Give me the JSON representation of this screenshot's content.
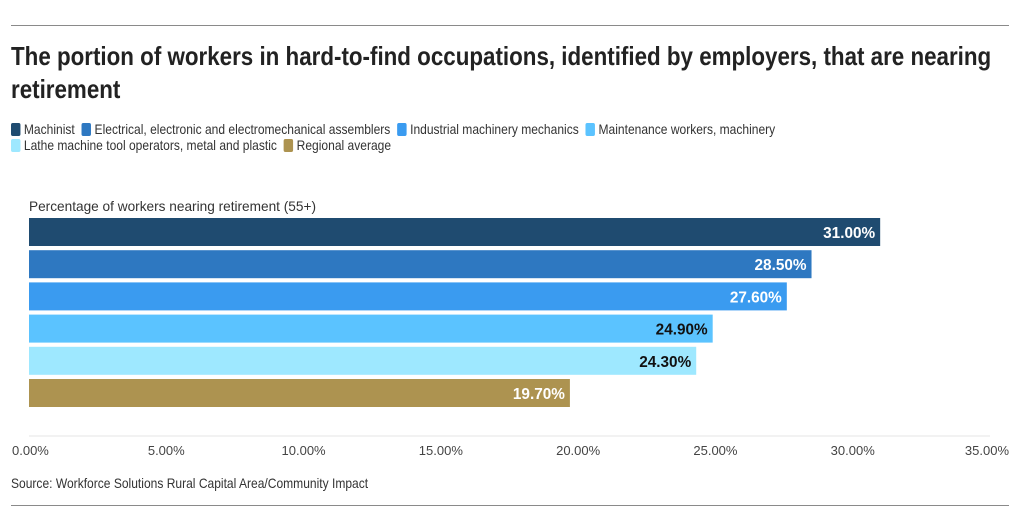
{
  "chart_data": {
    "type": "bar",
    "orientation": "horizontal",
    "title": "The portion of workers in hard-to-find occupations, identified by employers, that are nearing retirement",
    "ylabel": "Percentage of workers nearing retirement (55+)",
    "categories": [
      "Machinist",
      "Electrical, electronic and electromechanical assemblers",
      "Industrial machinery mechanics",
      "Maintenance workers, machinery",
      "Lathe machine tool operators, metal and plastic",
      "Regional average"
    ],
    "values": [
      31.0,
      28.5,
      27.6,
      24.9,
      24.3,
      19.7
    ],
    "value_labels": [
      "31.00%",
      "28.50%",
      "27.60%",
      "24.90%",
      "24.30%",
      "19.70%"
    ],
    "colors": [
      "#1f4b70",
      "#2e78c1",
      "#3a9bf0",
      "#5bc3ff",
      "#9ee8ff",
      "#ad9350"
    ],
    "label_colors": [
      "#ffffff",
      "#ffffff",
      "#ffffff",
      "#111111",
      "#111111",
      "#ffffff"
    ],
    "xlim": [
      0,
      35
    ],
    "xticks": [
      0,
      5,
      10,
      15,
      20,
      25,
      30,
      35
    ],
    "xtick_labels": [
      "0.00%",
      "5.00%",
      "10.00%",
      "15.00%",
      "20.00%",
      "25.00%",
      "30.00%",
      "35.00%"
    ],
    "legend": "top",
    "source": "Source: Workforce Solutions Rural Capital Area/Community Impact"
  }
}
